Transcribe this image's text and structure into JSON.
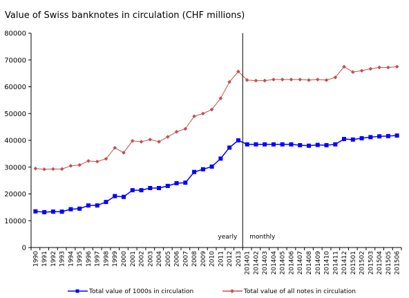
{
  "chart_data": {
    "type": "line",
    "title": "Value of Swiss banknotes in circulation (CHF millions)",
    "ylim": [
      0,
      80000
    ],
    "yticks": [
      0,
      10000,
      20000,
      30000,
      40000,
      50000,
      60000,
      70000,
      80000
    ],
    "grid": false,
    "legend_position": "bottom",
    "categories": [
      "1990",
      "1991",
      "1992",
      "1993",
      "1994",
      "1995",
      "1996",
      "1997",
      "1998",
      "1999",
      "2000",
      "2001",
      "2002",
      "2003",
      "2004",
      "2005",
      "2006",
      "2007",
      "2008",
      "2009",
      "2010",
      "2011",
      "2012",
      "2013",
      "201401",
      "201402",
      "201403",
      "201404",
      "201405",
      "201406",
      "201407",
      "201408",
      "201409",
      "201410",
      "201411",
      "201412",
      "201501",
      "201502",
      "201503",
      "201504",
      "201505",
      "201506"
    ],
    "divider_after": "2013",
    "annotations": [
      "yearly",
      "monthly"
    ],
    "series": [
      {
        "name": "Total value of 1000s in circulation",
        "color": "#0000ff",
        "marker": "square",
        "values": [
          13500,
          13200,
          13400,
          13400,
          14300,
          14500,
          15700,
          15700,
          17000,
          19200,
          18900,
          21400,
          21400,
          22200,
          22200,
          23000,
          24000,
          24200,
          28200,
          29200,
          30200,
          33200,
          37300,
          40000,
          38500,
          38500,
          38500,
          38500,
          38500,
          38500,
          38200,
          38000,
          38300,
          38200,
          38500,
          40500,
          40300,
          40800,
          41200,
          41500,
          41600,
          41800
        ]
      },
      {
        "name": "Total value of all notes in circulation",
        "color": "#c0504d",
        "marker": "diamond",
        "values": [
          29500,
          29200,
          29300,
          29300,
          30500,
          30800,
          32300,
          32100,
          33100,
          37200,
          35400,
          39800,
          39500,
          40300,
          39500,
          41300,
          43200,
          44300,
          49000,
          50000,
          51500,
          55700,
          61800,
          65700,
          62500,
          62300,
          62300,
          62700,
          62700,
          62700,
          62700,
          62500,
          62700,
          62500,
          63500,
          67500,
          65500,
          66000,
          66700,
          67200,
          67200,
          67500
        ]
      }
    ]
  }
}
